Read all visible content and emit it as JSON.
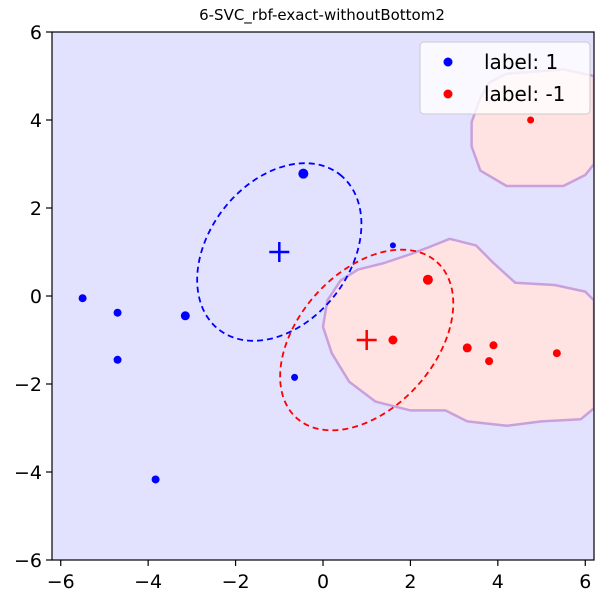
{
  "chart_data": {
    "type": "scatter",
    "title": "6-SVC_rbf-exact-withoutBottom2",
    "xlim": [
      -6.2,
      6.2
    ],
    "ylim": [
      -6,
      6
    ],
    "x_ticks": [
      -6,
      -4,
      -2,
      0,
      2,
      4,
      6
    ],
    "y_ticks": [
      -6,
      -4,
      -2,
      0,
      2,
      4,
      6
    ],
    "x_tick_labels": [
      "−6",
      "−4",
      "−2",
      "0",
      "2",
      "4",
      "6"
    ],
    "y_tick_labels": [
      "−6",
      "−4",
      "−2",
      "0",
      "2",
      "4",
      "6"
    ],
    "grid": false,
    "legend_position": "top-right",
    "background_color": "#e2e2ff",
    "region_color": "#ffe2e2",
    "region_border_color": "#c9a0dc",
    "series": [
      {
        "name": "label: 1",
        "color": "#0000ff",
        "points": [
          {
            "x": -5.5,
            "y": -0.05,
            "size": 4
          },
          {
            "x": -4.7,
            "y": -0.38,
            "size": 4
          },
          {
            "x": -4.7,
            "y": -1.45,
            "size": 4
          },
          {
            "x": -3.83,
            "y": -4.17,
            "size": 4
          },
          {
            "x": -3.15,
            "y": -0.45,
            "size": 4.5
          },
          {
            "x": -0.45,
            "y": 2.78,
            "size": 5
          },
          {
            "x": 1.6,
            "y": 1.15,
            "size": 3
          },
          {
            "x": -0.65,
            "y": -1.85,
            "size": 3.5
          }
        ],
        "mean": {
          "x": -1,
          "y": 1
        },
        "ellipse": {
          "center": [
            -1,
            1
          ],
          "semi_major": 2.25,
          "semi_minor": 1.6,
          "angle_deg": 52
        }
      },
      {
        "name": "label: -1",
        "color": "#ff0000",
        "points": [
          {
            "x": 4.75,
            "y": 4.0,
            "size": 3.5
          },
          {
            "x": 2.4,
            "y": 0.37,
            "size": 5
          },
          {
            "x": 1.6,
            "y": -1.0,
            "size": 4.5
          },
          {
            "x": 3.3,
            "y": -1.18,
            "size": 4.5
          },
          {
            "x": 3.9,
            "y": -1.12,
            "size": 4
          },
          {
            "x": 3.8,
            "y": -1.48,
            "size": 4
          },
          {
            "x": 5.35,
            "y": -1.3,
            "size": 4
          }
        ],
        "mean": {
          "x": 1,
          "y": -1
        },
        "ellipse": {
          "center": [
            1,
            -1
          ],
          "semi_major": 2.4,
          "semi_minor": 1.55,
          "angle_deg": 48
        }
      }
    ],
    "decision_regions": [
      {
        "label": "-1",
        "polygon": [
          [
            3.4,
            3.95
          ],
          [
            3.6,
            4.5
          ],
          [
            3.8,
            4.85
          ],
          [
            4.2,
            5.05
          ],
          [
            5.5,
            5.15
          ],
          [
            6.2,
            5.0
          ],
          [
            6.2,
            3.0
          ],
          [
            6.0,
            2.75
          ],
          [
            5.5,
            2.5
          ],
          [
            5.0,
            2.5
          ],
          [
            4.2,
            2.5
          ],
          [
            3.6,
            2.85
          ],
          [
            3.4,
            3.4
          ]
        ]
      },
      {
        "label": "-1",
        "polygon": [
          [
            0.1,
            -0.1
          ],
          [
            0.4,
            0.35
          ],
          [
            0.8,
            0.6
          ],
          [
            1.4,
            0.75
          ],
          [
            2.0,
            0.95
          ],
          [
            2.4,
            1.1
          ],
          [
            2.9,
            1.3
          ],
          [
            3.5,
            1.15
          ],
          [
            3.9,
            0.75
          ],
          [
            4.4,
            0.3
          ],
          [
            5.3,
            0.25
          ],
          [
            6.0,
            0.1
          ],
          [
            6.2,
            -0.1
          ],
          [
            6.2,
            -2.55
          ],
          [
            5.9,
            -2.8
          ],
          [
            5.0,
            -2.85
          ],
          [
            4.2,
            -2.95
          ],
          [
            3.3,
            -2.85
          ],
          [
            2.8,
            -2.6
          ],
          [
            2.0,
            -2.6
          ],
          [
            1.2,
            -2.4
          ],
          [
            0.6,
            -1.95
          ],
          [
            0.2,
            -1.3
          ],
          [
            0.0,
            -0.7
          ]
        ]
      }
    ]
  }
}
